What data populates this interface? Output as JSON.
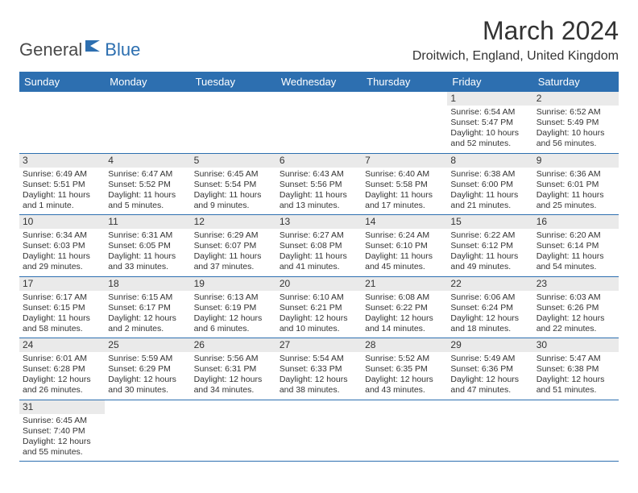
{
  "logo": {
    "text1": "General",
    "text2": "Blue"
  },
  "title": "March 2024",
  "location": "Droitwich, England, United Kingdom",
  "colors": {
    "header_bg": "#2d6fb0",
    "row_sep": "#2d6fb0",
    "daynum_bg": "#eaeaea",
    "text": "#333333",
    "page_bg": "#ffffff"
  },
  "day_headers": [
    "Sunday",
    "Monday",
    "Tuesday",
    "Wednesday",
    "Thursday",
    "Friday",
    "Saturday"
  ],
  "weeks": [
    [
      null,
      null,
      null,
      null,
      null,
      {
        "n": "1",
        "sr": "6:54 AM",
        "ss": "5:47 PM",
        "dl": "10 hours and 52 minutes."
      },
      {
        "n": "2",
        "sr": "6:52 AM",
        "ss": "5:49 PM",
        "dl": "10 hours and 56 minutes."
      }
    ],
    [
      {
        "n": "3",
        "sr": "6:49 AM",
        "ss": "5:51 PM",
        "dl": "11 hours and 1 minute."
      },
      {
        "n": "4",
        "sr": "6:47 AM",
        "ss": "5:52 PM",
        "dl": "11 hours and 5 minutes."
      },
      {
        "n": "5",
        "sr": "6:45 AM",
        "ss": "5:54 PM",
        "dl": "11 hours and 9 minutes."
      },
      {
        "n": "6",
        "sr": "6:43 AM",
        "ss": "5:56 PM",
        "dl": "11 hours and 13 minutes."
      },
      {
        "n": "7",
        "sr": "6:40 AM",
        "ss": "5:58 PM",
        "dl": "11 hours and 17 minutes."
      },
      {
        "n": "8",
        "sr": "6:38 AM",
        "ss": "6:00 PM",
        "dl": "11 hours and 21 minutes."
      },
      {
        "n": "9",
        "sr": "6:36 AM",
        "ss": "6:01 PM",
        "dl": "11 hours and 25 minutes."
      }
    ],
    [
      {
        "n": "10",
        "sr": "6:34 AM",
        "ss": "6:03 PM",
        "dl": "11 hours and 29 minutes."
      },
      {
        "n": "11",
        "sr": "6:31 AM",
        "ss": "6:05 PM",
        "dl": "11 hours and 33 minutes."
      },
      {
        "n": "12",
        "sr": "6:29 AM",
        "ss": "6:07 PM",
        "dl": "11 hours and 37 minutes."
      },
      {
        "n": "13",
        "sr": "6:27 AM",
        "ss": "6:08 PM",
        "dl": "11 hours and 41 minutes."
      },
      {
        "n": "14",
        "sr": "6:24 AM",
        "ss": "6:10 PM",
        "dl": "11 hours and 45 minutes."
      },
      {
        "n": "15",
        "sr": "6:22 AM",
        "ss": "6:12 PM",
        "dl": "11 hours and 49 minutes."
      },
      {
        "n": "16",
        "sr": "6:20 AM",
        "ss": "6:14 PM",
        "dl": "11 hours and 54 minutes."
      }
    ],
    [
      {
        "n": "17",
        "sr": "6:17 AM",
        "ss": "6:15 PM",
        "dl": "11 hours and 58 minutes."
      },
      {
        "n": "18",
        "sr": "6:15 AM",
        "ss": "6:17 PM",
        "dl": "12 hours and 2 minutes."
      },
      {
        "n": "19",
        "sr": "6:13 AM",
        "ss": "6:19 PM",
        "dl": "12 hours and 6 minutes."
      },
      {
        "n": "20",
        "sr": "6:10 AM",
        "ss": "6:21 PM",
        "dl": "12 hours and 10 minutes."
      },
      {
        "n": "21",
        "sr": "6:08 AM",
        "ss": "6:22 PM",
        "dl": "12 hours and 14 minutes."
      },
      {
        "n": "22",
        "sr": "6:06 AM",
        "ss": "6:24 PM",
        "dl": "12 hours and 18 minutes."
      },
      {
        "n": "23",
        "sr": "6:03 AM",
        "ss": "6:26 PM",
        "dl": "12 hours and 22 minutes."
      }
    ],
    [
      {
        "n": "24",
        "sr": "6:01 AM",
        "ss": "6:28 PM",
        "dl": "12 hours and 26 minutes."
      },
      {
        "n": "25",
        "sr": "5:59 AM",
        "ss": "6:29 PM",
        "dl": "12 hours and 30 minutes."
      },
      {
        "n": "26",
        "sr": "5:56 AM",
        "ss": "6:31 PM",
        "dl": "12 hours and 34 minutes."
      },
      {
        "n": "27",
        "sr": "5:54 AM",
        "ss": "6:33 PM",
        "dl": "12 hours and 38 minutes."
      },
      {
        "n": "28",
        "sr": "5:52 AM",
        "ss": "6:35 PM",
        "dl": "12 hours and 43 minutes."
      },
      {
        "n": "29",
        "sr": "5:49 AM",
        "ss": "6:36 PM",
        "dl": "12 hours and 47 minutes."
      },
      {
        "n": "30",
        "sr": "5:47 AM",
        "ss": "6:38 PM",
        "dl": "12 hours and 51 minutes."
      }
    ],
    [
      {
        "n": "31",
        "sr": "6:45 AM",
        "ss": "7:40 PM",
        "dl": "12 hours and 55 minutes."
      },
      null,
      null,
      null,
      null,
      null,
      null
    ]
  ],
  "labels": {
    "sunrise": "Sunrise:",
    "sunset": "Sunset:",
    "daylight": "Daylight:"
  }
}
